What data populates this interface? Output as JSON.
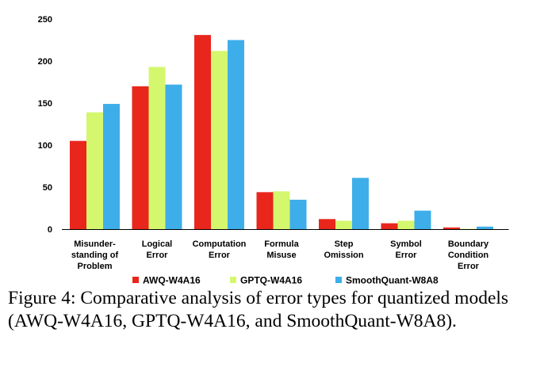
{
  "chart_data": {
    "type": "bar",
    "title": "",
    "xlabel": "",
    "ylabel": "",
    "ylim": [
      0,
      250
    ],
    "yticks": [
      0,
      50,
      100,
      150,
      200,
      250
    ],
    "grid": false,
    "legend_position": "bottom",
    "categories": [
      [
        "Misunder-",
        "standing of",
        "Problem"
      ],
      [
        "Logical",
        "Error"
      ],
      [
        "Computation",
        "Error"
      ],
      [
        "Formula",
        "Misuse"
      ],
      [
        "Step",
        "Omission"
      ],
      [
        "Symbol",
        "Error"
      ],
      [
        "Boundary",
        "Condition",
        "Error"
      ]
    ],
    "series": [
      {
        "name": "AWQ-W4A16",
        "color": "#e8261c",
        "values": [
          105,
          170,
          231,
          44,
          12,
          7,
          2
        ]
      },
      {
        "name": "GPTQ-W4A16",
        "color": "#d4f76e",
        "values": [
          139,
          193,
          212,
          45,
          10,
          10,
          0.5
        ]
      },
      {
        "name": "SmoothQuant-W8A8",
        "color": "#3daee9",
        "values": [
          149,
          172,
          225,
          35,
          61,
          22,
          3
        ]
      }
    ]
  },
  "caption": "Figure 4:  Comparative analysis of error types for quantized models (AWQ-W4A16, GPTQ-W4A16, and SmoothQuant-W8A8)."
}
